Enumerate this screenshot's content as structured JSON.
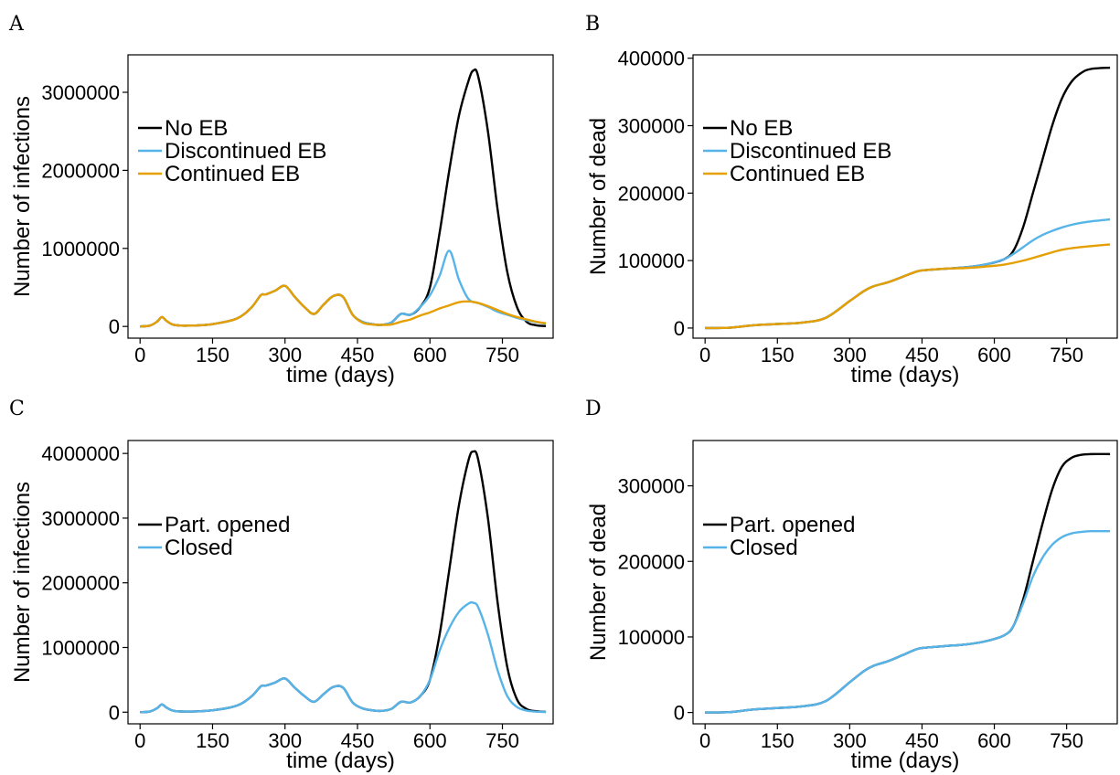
{
  "chart_data": [
    {
      "panel": "A",
      "type": "line",
      "xlabel": "time (days)",
      "ylabel": "Number of infections",
      "xlim": [
        -25,
        855
      ],
      "ylim": [
        -150000,
        3480000
      ],
      "xticks": [
        0,
        150,
        300,
        450,
        600,
        750
      ],
      "yticks": [
        0,
        1000000,
        2000000,
        3000000
      ],
      "legend_position": "upper-left",
      "series": [
        {
          "name": "No EB",
          "color": "#000000",
          "x": [
            0,
            20,
            35,
            45,
            55,
            70,
            100,
            150,
            200,
            230,
            250,
            260,
            280,
            300,
            320,
            340,
            360,
            380,
            400,
            420,
            440,
            460,
            480,
            500,
            520,
            540,
            560,
            580,
            600,
            620,
            640,
            660,
            680,
            690,
            700,
            720,
            740,
            760,
            780,
            800,
            820,
            840
          ],
          "y": [
            0,
            10000,
            60000,
            120000,
            70000,
            20000,
            10000,
            30000,
            100000,
            240000,
            400000,
            410000,
            460000,
            520000,
            380000,
            250000,
            160000,
            280000,
            390000,
            380000,
            150000,
            60000,
            30000,
            20000,
            50000,
            160000,
            150000,
            250000,
            500000,
            1200000,
            2000000,
            2700000,
            3150000,
            3280000,
            3200000,
            2500000,
            1500000,
            700000,
            250000,
            60000,
            15000,
            5000
          ]
        },
        {
          "name": "Discontinued EB",
          "color": "#56B4E9",
          "x": [
            0,
            20,
            35,
            45,
            55,
            70,
            100,
            150,
            200,
            230,
            250,
            260,
            280,
            300,
            320,
            340,
            360,
            380,
            400,
            420,
            440,
            460,
            480,
            500,
            520,
            540,
            560,
            580,
            600,
            620,
            640,
            660,
            680,
            700,
            720,
            740,
            760,
            780,
            800,
            820,
            840
          ],
          "y": [
            0,
            10000,
            60000,
            120000,
            70000,
            20000,
            10000,
            30000,
            100000,
            240000,
            400000,
            410000,
            460000,
            520000,
            380000,
            250000,
            160000,
            280000,
            390000,
            380000,
            150000,
            60000,
            30000,
            20000,
            50000,
            160000,
            150000,
            250000,
            400000,
            650000,
            970000,
            600000,
            350000,
            300000,
            250000,
            190000,
            150000,
            110000,
            80000,
            55000,
            35000
          ]
        },
        {
          "name": "Continued EB",
          "color": "#E69F00",
          "x": [
            0,
            20,
            35,
            45,
            55,
            70,
            100,
            150,
            200,
            230,
            250,
            260,
            280,
            300,
            320,
            340,
            360,
            380,
            400,
            420,
            440,
            460,
            480,
            500,
            520,
            540,
            560,
            580,
            600,
            620,
            640,
            660,
            680,
            700,
            720,
            740,
            760,
            780,
            800,
            820,
            840
          ],
          "y": [
            0,
            10000,
            60000,
            120000,
            70000,
            20000,
            10000,
            30000,
            100000,
            240000,
            400000,
            410000,
            460000,
            520000,
            380000,
            250000,
            160000,
            280000,
            390000,
            380000,
            150000,
            50000,
            25000,
            20000,
            25000,
            60000,
            90000,
            140000,
            180000,
            230000,
            270000,
            310000,
            320000,
            300000,
            260000,
            210000,
            160000,
            120000,
            90000,
            60000,
            40000
          ]
        }
      ]
    },
    {
      "panel": "B",
      "type": "line",
      "xlabel": "time (days)",
      "ylabel": "Number of dead",
      "xlim": [
        -25,
        855
      ],
      "ylim": [
        -15000,
        405000
      ],
      "xticks": [
        0,
        150,
        300,
        450,
        600,
        750
      ],
      "yticks": [
        0,
        100000,
        200000,
        300000,
        400000
      ],
      "legend_position": "upper-left",
      "series": [
        {
          "name": "No EB",
          "color": "#000000",
          "x": [
            0,
            50,
            100,
            150,
            200,
            250,
            300,
            330,
            350,
            380,
            410,
            440,
            460,
            500,
            540,
            580,
            620,
            640,
            660,
            680,
            700,
            720,
            740,
            760,
            780,
            800,
            840
          ],
          "y": [
            0,
            500,
            4000,
            6000,
            8000,
            15000,
            40000,
            55000,
            62000,
            68000,
            76000,
            84000,
            86000,
            88000,
            90000,
            94000,
            102000,
            115000,
            150000,
            200000,
            250000,
            300000,
            340000,
            365000,
            378000,
            384000,
            386000
          ]
        },
        {
          "name": "Discontinued EB",
          "color": "#56B4E9",
          "x": [
            0,
            50,
            100,
            150,
            200,
            250,
            300,
            330,
            350,
            380,
            410,
            440,
            460,
            500,
            540,
            580,
            620,
            640,
            660,
            680,
            700,
            720,
            740,
            760,
            780,
            800,
            840
          ],
          "y": [
            0,
            500,
            4000,
            6000,
            8000,
            15000,
            40000,
            55000,
            62000,
            68000,
            76000,
            84000,
            86000,
            88000,
            90000,
            94000,
            102000,
            110000,
            120000,
            130000,
            138000,
            144000,
            149000,
            153000,
            156000,
            158000,
            161000
          ]
        },
        {
          "name": "Continued EB",
          "color": "#E69F00",
          "x": [
            0,
            50,
            100,
            150,
            200,
            250,
            300,
            330,
            350,
            380,
            410,
            440,
            460,
            500,
            540,
            580,
            620,
            660,
            700,
            740,
            780,
            840
          ],
          "y": [
            0,
            500,
            4000,
            6000,
            8000,
            15000,
            40000,
            55000,
            62000,
            68000,
            76000,
            84000,
            86000,
            88000,
            89000,
            91000,
            94000,
            100000,
            108000,
            116000,
            120000,
            124000
          ]
        }
      ]
    },
    {
      "panel": "C",
      "type": "line",
      "xlabel": "time (days)",
      "ylabel": "Number of infections",
      "xlim": [
        -25,
        855
      ],
      "ylim": [
        -180000,
        4200000
      ],
      "xticks": [
        0,
        150,
        300,
        450,
        600,
        750
      ],
      "yticks": [
        0,
        1000000,
        2000000,
        3000000,
        4000000
      ],
      "legend_position": "upper-left",
      "series": [
        {
          "name": "Part. opened",
          "color": "#000000",
          "x": [
            0,
            20,
            35,
            45,
            55,
            70,
            100,
            150,
            200,
            230,
            250,
            260,
            280,
            300,
            320,
            340,
            360,
            380,
            400,
            420,
            440,
            460,
            480,
            500,
            520,
            540,
            560,
            580,
            600,
            620,
            640,
            660,
            680,
            690,
            700,
            720,
            740,
            760,
            780,
            800,
            820,
            840
          ],
          "y": [
            0,
            10000,
            60000,
            120000,
            70000,
            20000,
            10000,
            30000,
            100000,
            240000,
            400000,
            410000,
            460000,
            520000,
            380000,
            250000,
            160000,
            280000,
            390000,
            380000,
            150000,
            60000,
            30000,
            20000,
            50000,
            160000,
            150000,
            250000,
            500000,
            1200000,
            2200000,
            3200000,
            3900000,
            4030000,
            3900000,
            3000000,
            1700000,
            700000,
            200000,
            50000,
            15000,
            5000
          ]
        },
        {
          "name": "Closed",
          "color": "#56B4E9",
          "x": [
            0,
            20,
            35,
            45,
            55,
            70,
            100,
            150,
            200,
            230,
            250,
            260,
            280,
            300,
            320,
            340,
            360,
            380,
            400,
            420,
            440,
            460,
            480,
            500,
            520,
            540,
            560,
            580,
            600,
            620,
            640,
            660,
            680,
            690,
            700,
            720,
            740,
            760,
            780,
            800,
            820,
            840
          ],
          "y": [
            0,
            10000,
            60000,
            120000,
            70000,
            20000,
            10000,
            30000,
            100000,
            240000,
            400000,
            410000,
            460000,
            520000,
            380000,
            250000,
            160000,
            280000,
            390000,
            380000,
            150000,
            60000,
            30000,
            20000,
            50000,
            160000,
            150000,
            250000,
            500000,
            950000,
            1300000,
            1550000,
            1680000,
            1690000,
            1620000,
            1200000,
            650000,
            250000,
            80000,
            25000,
            8000,
            3000
          ]
        }
      ]
    },
    {
      "panel": "D",
      "type": "line",
      "xlabel": "time (days)",
      "ylabel": "Number of dead",
      "xlim": [
        -25,
        855
      ],
      "ylim": [
        -15000,
        360000
      ],
      "xticks": [
        0,
        150,
        300,
        450,
        600,
        750
      ],
      "yticks": [
        0,
        100000,
        200000,
        300000
      ],
      "legend_position": "upper-left",
      "series": [
        {
          "name": "Part. opened",
          "color": "#000000",
          "x": [
            0,
            50,
            100,
            150,
            200,
            250,
            300,
            330,
            350,
            380,
            410,
            440,
            460,
            500,
            540,
            580,
            620,
            640,
            660,
            680,
            700,
            720,
            740,
            760,
            780,
            800,
            840
          ],
          "y": [
            0,
            500,
            4000,
            6000,
            8000,
            15000,
            40000,
            55000,
            62000,
            68000,
            76000,
            84000,
            86000,
            88000,
            90000,
            94000,
            102000,
            115000,
            150000,
            200000,
            250000,
            295000,
            325000,
            337000,
            341000,
            342000,
            342000
          ]
        },
        {
          "name": "Closed",
          "color": "#56B4E9",
          "x": [
            0,
            50,
            100,
            150,
            200,
            250,
            300,
            330,
            350,
            380,
            410,
            440,
            460,
            500,
            540,
            580,
            620,
            640,
            660,
            680,
            700,
            720,
            740,
            760,
            780,
            800,
            840
          ],
          "y": [
            0,
            500,
            4000,
            6000,
            8000,
            15000,
            40000,
            55000,
            62000,
            68000,
            76000,
            84000,
            86000,
            88000,
            90000,
            94000,
            102000,
            115000,
            145000,
            180000,
            205000,
            222000,
            232000,
            237000,
            239000,
            240000,
            240000
          ]
        }
      ]
    }
  ]
}
